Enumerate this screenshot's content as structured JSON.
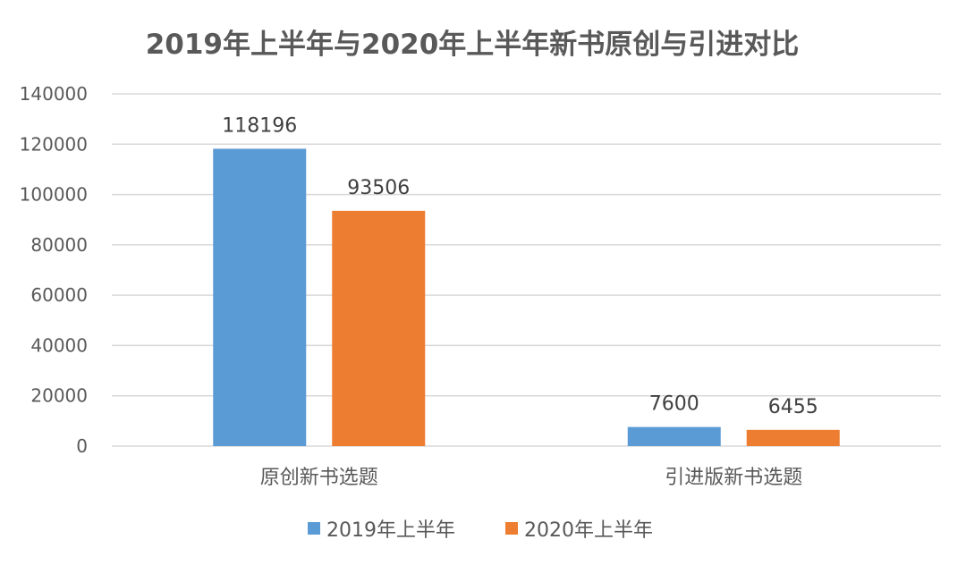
{
  "chart_data": {
    "type": "bar",
    "title": "2019年上半年与2020年上半年新书原创与引进对比",
    "xlabel": "",
    "ylabel": "",
    "categories": [
      "原创新书选题",
      "引进版新书选题"
    ],
    "series": [
      {
        "name": "2019年上半年",
        "values": [
          118196,
          7600
        ],
        "color": "#5b9bd5"
      },
      {
        "name": "2020年上半年",
        "values": [
          93506,
          6455
        ],
        "color": "#ed7d31"
      }
    ],
    "ylim": [
      0,
      140000
    ],
    "yticks": [
      0,
      20000,
      40000,
      60000,
      80000,
      100000,
      120000,
      140000
    ],
    "grid": true,
    "legend_position": "bottom"
  }
}
